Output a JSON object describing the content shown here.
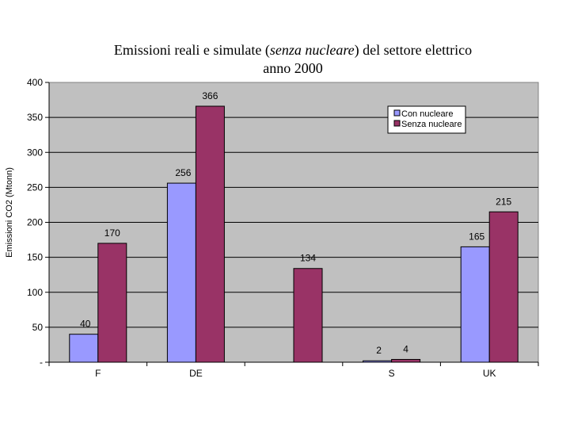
{
  "chart_data": {
    "type": "bar",
    "title_parts": [
      "Emissioni reali e simulate (",
      "senza nucleare",
      ") del settore elettrico"
    ],
    "title_line2": "anno 2000",
    "ylabel": "Emissioni CO2 (Mtonn)",
    "xlabel": "",
    "categories": [
      "F",
      "DE",
      "",
      "S",
      "UK"
    ],
    "series": [
      {
        "name": "Con nucleare",
        "color": "#9999ff",
        "values": [
          40,
          256,
          null,
          2,
          165
        ]
      },
      {
        "name": "Senza nucleare",
        "color": "#993366",
        "values": [
          170,
          366,
          134,
          4,
          215
        ]
      }
    ],
    "ylim": [
      0,
      400
    ],
    "yticks": [
      {
        "value": 400,
        "label": "400"
      },
      {
        "value": 350,
        "label": "350"
      },
      {
        "value": 300,
        "label": "300"
      },
      {
        "value": 250,
        "label": "250"
      },
      {
        "value": 200,
        "label": "200"
      },
      {
        "value": 150,
        "label": "150"
      },
      {
        "value": 100,
        "label": "100"
      },
      {
        "value": 50,
        "label": "50"
      },
      {
        "value": 0,
        "label": "-"
      }
    ],
    "grid": true,
    "plot_background": "#c0c0c0",
    "legend_position": "top-right"
  }
}
